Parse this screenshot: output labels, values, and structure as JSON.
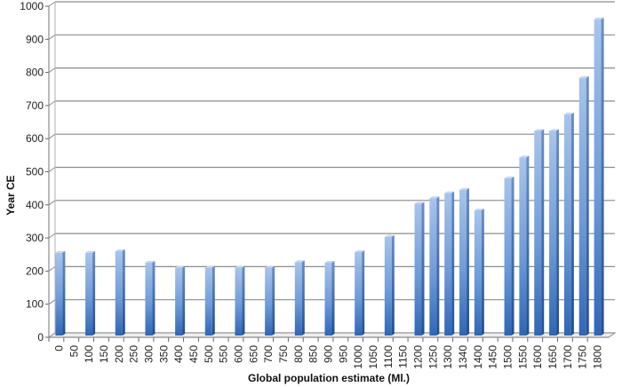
{
  "chart_data": {
    "type": "bar",
    "title": "",
    "xlabel": "Global population estimate (Ml.)",
    "ylabel": "Year CE",
    "ylim": [
      0,
      1000
    ],
    "yticks": [
      0,
      100,
      200,
      300,
      400,
      500,
      600,
      700,
      800,
      900,
      1000
    ],
    "grid": true,
    "legend": null,
    "categories": [
      "0",
      "50",
      "100",
      "150",
      "200",
      "250",
      "300",
      "350",
      "400",
      "450",
      "500",
      "550",
      "600",
      "650",
      "700",
      "750",
      "800",
      "850",
      "900",
      "950",
      "1000",
      "1050",
      "1100",
      "1150",
      "1200",
      "1250",
      "1300",
      "1340",
      "1400",
      "1450",
      "1500",
      "1550",
      "1600",
      "1650",
      "1700",
      "1750",
      "1800"
    ],
    "values": [
      250,
      null,
      250,
      null,
      255,
      null,
      220,
      null,
      205,
      null,
      205,
      null,
      205,
      null,
      205,
      null,
      222,
      null,
      220,
      null,
      252,
      null,
      298,
      null,
      398,
      415,
      430,
      440,
      378,
      null,
      475,
      538,
      618,
      618,
      668,
      778,
      955
    ],
    "bar_color": "#4a7fc4"
  }
}
